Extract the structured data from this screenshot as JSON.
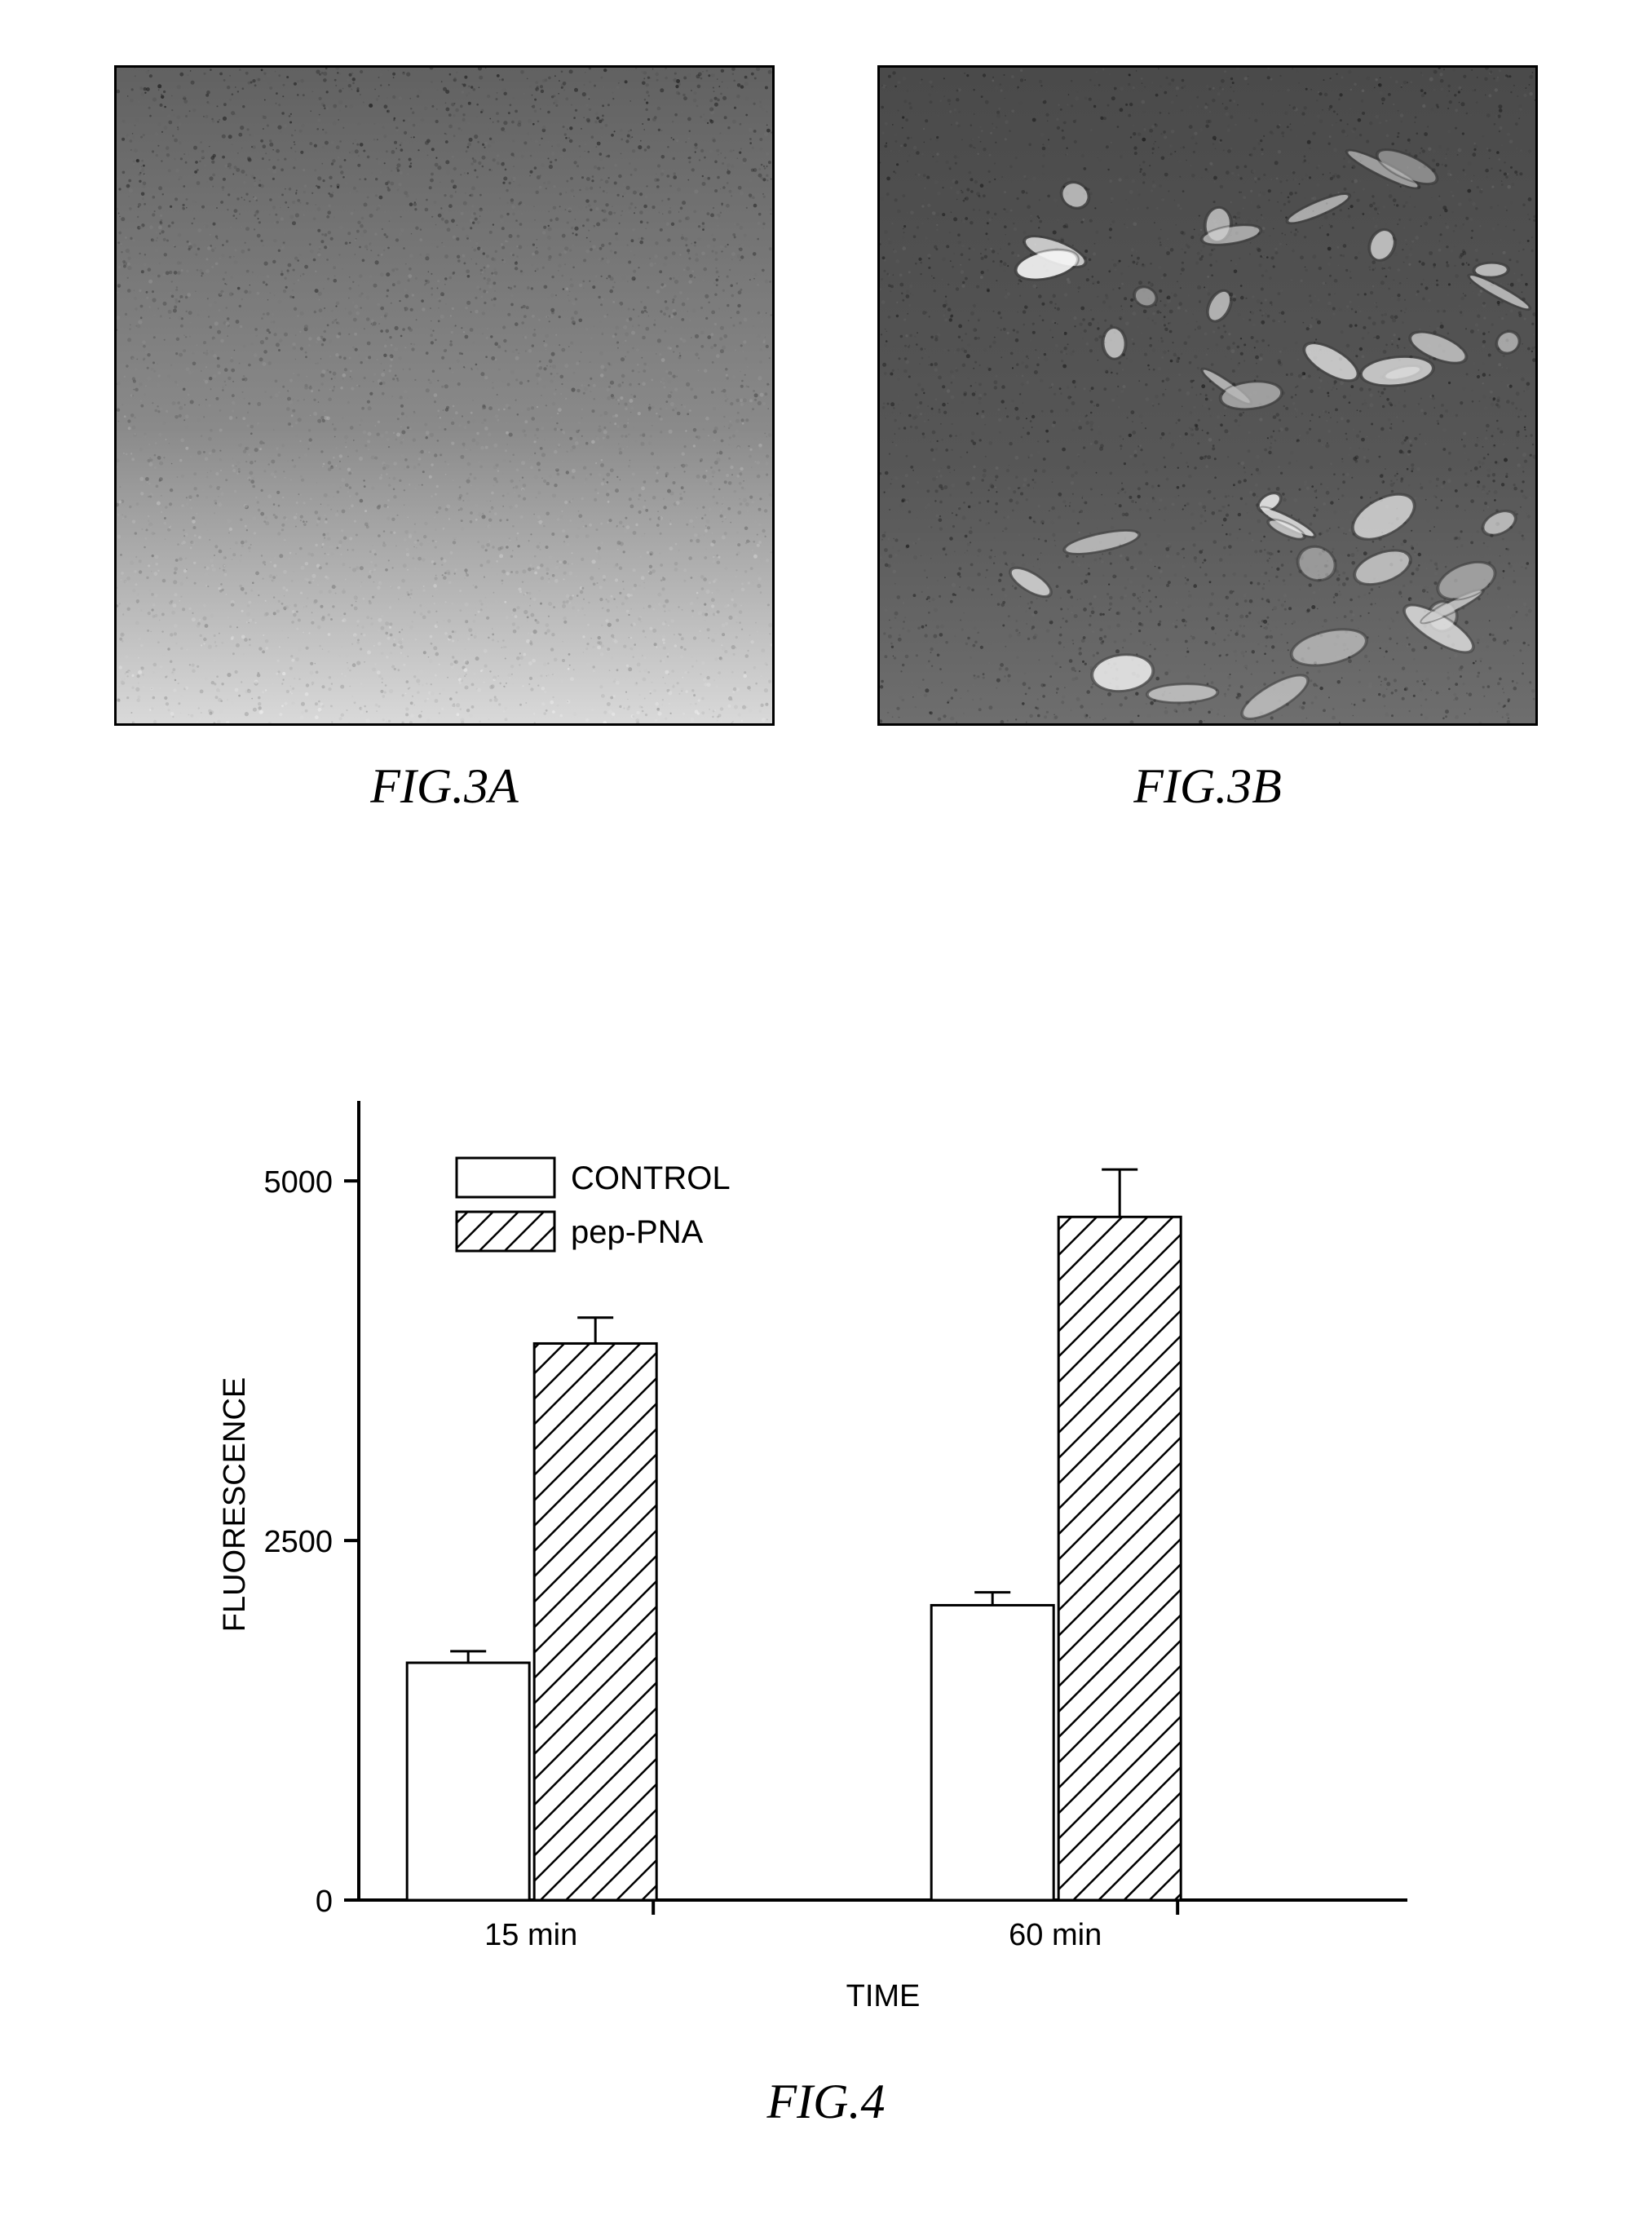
{
  "fig3a": {
    "caption": "FIG.3A",
    "description": "grayscale micrograph, smooth noisy texture, lighter toward bottom"
  },
  "fig3b": {
    "caption": "FIG.3B",
    "description": "grayscale micrograph, mottled with bright irregular cell-like blobs"
  },
  "fig4": {
    "caption": "FIG.4",
    "chart": {
      "type": "bar",
      "ylabel": "FLUORESCENCE",
      "xlabel": "TIME",
      "ylim": [
        0,
        5500
      ],
      "yticks": [
        0,
        2500,
        5000
      ],
      "categories": [
        "15  min",
        "60  min"
      ],
      "legend": {
        "position": "inside-top-left",
        "items": [
          {
            "label": "CONTROL",
            "fill": "#ffffff",
            "pattern": "none"
          },
          {
            "label": "pep-PNA",
            "fill": "hatch",
            "pattern": "diagonal"
          }
        ]
      },
      "groups": [
        {
          "category": "15  min",
          "bars": [
            {
              "label": "CONTROL",
              "value": 1650,
              "error": 80,
              "fill": "#ffffff",
              "pattern": "none"
            },
            {
              "label": "pep-PNA",
              "value": 3870,
              "error": 180,
              "fill": "hatch",
              "pattern": "diagonal"
            }
          ]
        },
        {
          "category": "60  min",
          "bars": [
            {
              "label": "CONTROL",
              "value": 2050,
              "error": 90,
              "fill": "#ffffff",
              "pattern": "none"
            },
            {
              "label": "pep-PNA",
              "value": 4750,
              "error": 330,
              "fill": "hatch",
              "pattern": "diagonal"
            }
          ]
        }
      ],
      "colors": {
        "axis": "#000000",
        "bar_stroke": "#000000",
        "text": "#000000",
        "background": "#ffffff"
      },
      "bar_width_ratio": 0.85,
      "axis_line_width": 4,
      "bar_stroke_width": 3,
      "tick_length": 18,
      "label_fontsize": 38,
      "ylabel_fontsize": 38,
      "xlabel_fontsize": 38,
      "legend_fontsize": 40
    }
  }
}
